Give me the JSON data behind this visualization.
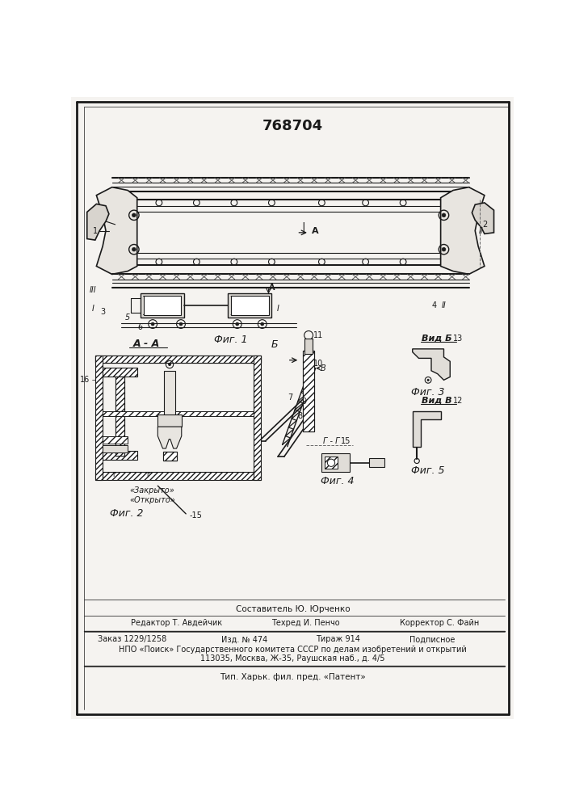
{
  "patent_number": "768704",
  "bg": "#ffffff",
  "paper_color": "#f5f3f0",
  "dc": "#1a1a1a",
  "hatch_color": "#444444",
  "footer_sestavitel": "Составитель Ю. Юрченко",
  "footer_redaktor": "Редактор Т. Авдейчик",
  "footer_tekhred": "Техред И. Пенчо",
  "footer_korrektor": "Корректор С. Файн",
  "footer_zakaz": "Заказ 1229/1258",
  "footer_izd": "Изд. № 474",
  "footer_tirazh": "Тираж 914",
  "footer_podpisnoe": "Подписное",
  "footer_npo": "НПО «Поиск» Государственного комитета СССР по делам изобретений и открытий",
  "footer_address": "113035, Москва, Ж-35, Раушская наб., д. 4/5",
  "footer_tip": "Тип. Харьк. фил. пред. «Патент»"
}
